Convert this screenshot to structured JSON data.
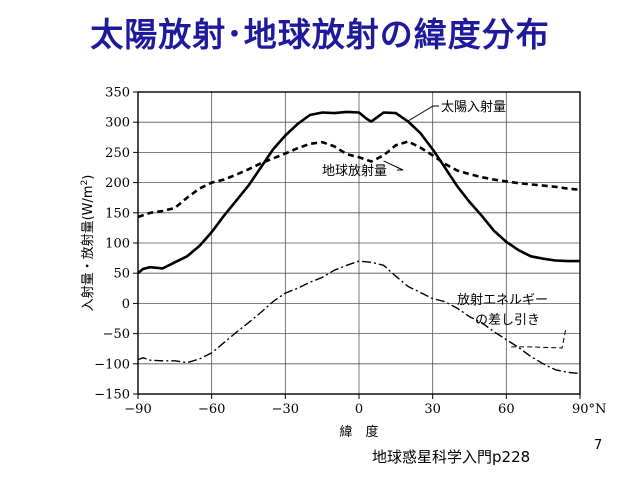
{
  "slide": {
    "title": "太陽放射･地球放射の緯度分布",
    "source": "地球惑星科学入門p228",
    "page_number": "7"
  },
  "chart_data": {
    "type": "line",
    "title": "",
    "xlabel": "緯　度",
    "ylabel_parts": [
      "入射量・放射量",
      "(W/m",
      "2",
      ")"
    ],
    "xlim": [
      -90,
      90
    ],
    "ylim": [
      -150,
      350
    ],
    "x_ticks": [
      -90,
      -60,
      -30,
      0,
      30,
      60,
      90
    ],
    "x_tick_labels": [
      "−90",
      "−60",
      "−30",
      "0",
      "30",
      "60",
      "90°N"
    ],
    "y_ticks": [
      -150,
      -100,
      -50,
      0,
      50,
      100,
      150,
      200,
      250,
      300,
      350
    ],
    "y_tick_labels": [
      "−150",
      "−100",
      "−50",
      "0",
      "50",
      "100",
      "150",
      "200",
      "250",
      "300",
      "350"
    ],
    "grid": true,
    "series": [
      {
        "name": "太陽入射量",
        "style": "solid",
        "label_lines": [
          "太陽入射量"
        ],
        "x": [
          -90,
          -88,
          -85,
          -80,
          -78,
          -75,
          -70,
          -65,
          -60,
          -55,
          -50,
          -45,
          -40,
          -35,
          -30,
          -25,
          -20,
          -15,
          -10,
          -5,
          0,
          3,
          5,
          8,
          10,
          15,
          20,
          25,
          30,
          35,
          40,
          45,
          50,
          55,
          60,
          65,
          70,
          75,
          80,
          85,
          90
        ],
        "values": [
          50,
          57,
          60,
          58,
          62,
          68,
          78,
          95,
          118,
          145,
          170,
          195,
          225,
          255,
          278,
          297,
          312,
          316,
          315,
          317,
          316,
          306,
          301,
          310,
          316,
          315,
          301,
          282,
          255,
          225,
          194,
          168,
          145,
          120,
          102,
          88,
          78,
          74,
          71,
          70,
          70
        ]
      },
      {
        "name": "地球放射量",
        "style": "dashed",
        "label_lines": [
          "地球放射量"
        ],
        "x": [
          -90,
          -85,
          -80,
          -75,
          -70,
          -65,
          -60,
          -55,
          -50,
          -45,
          -40,
          -35,
          -30,
          -25,
          -20,
          -15,
          -10,
          -5,
          0,
          5,
          10,
          15,
          20,
          25,
          30,
          35,
          40,
          45,
          50,
          55,
          60,
          65,
          70,
          75,
          80,
          85,
          90
        ],
        "values": [
          143,
          150,
          153,
          158,
          175,
          190,
          200,
          205,
          213,
          222,
          232,
          240,
          248,
          257,
          264,
          267,
          260,
          247,
          242,
          235,
          245,
          262,
          268,
          258,
          245,
          231,
          220,
          214,
          209,
          205,
          202,
          199,
          197,
          195,
          193,
          190,
          188
        ]
      },
      {
        "name": "放射エネルギーの差し引き",
        "style": "dashdot",
        "label_lines": [
          "放射エネルギー",
          "の差し引き"
        ],
        "x": [
          -90,
          -88,
          -85,
          -80,
          -75,
          -70,
          -65,
          -60,
          -55,
          -50,
          -45,
          -40,
          -35,
          -30,
          -25,
          -20,
          -15,
          -10,
          -5,
          0,
          5,
          10,
          15,
          20,
          25,
          30,
          35,
          40,
          45,
          50,
          55,
          60,
          65,
          70,
          75,
          80,
          85,
          90
        ],
        "values": [
          -93,
          -90,
          -94,
          -95,
          -95,
          -98,
          -92,
          -82,
          -65,
          -48,
          -32,
          -15,
          3,
          17,
          25,
          35,
          43,
          55,
          63,
          70,
          68,
          63,
          45,
          28,
          18,
          8,
          3,
          -8,
          -22,
          -32,
          -47,
          -60,
          -73,
          -88,
          -100,
          -110,
          -114,
          -116
        ]
      }
    ]
  }
}
